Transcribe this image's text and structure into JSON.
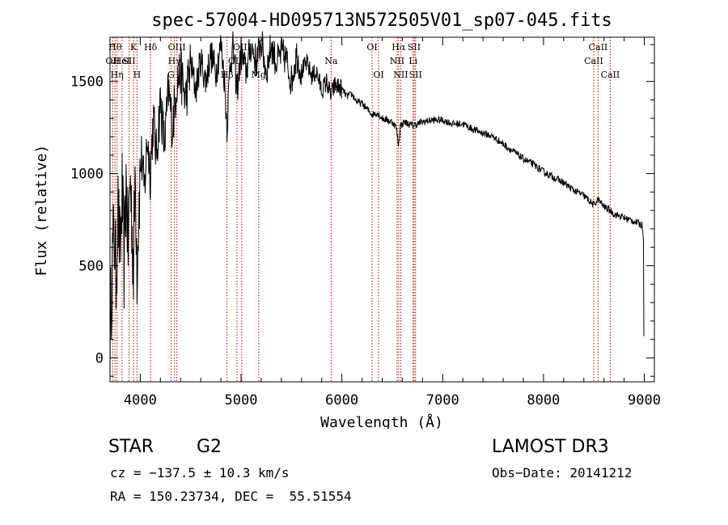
{
  "chart_data": {
    "type": "line",
    "title": "spec-57004-HD095713N572505V01_sp07-045.fits",
    "xlabel": "Wavelength (Å)",
    "ylabel": "Flux (relative)",
    "xlim": [
      3700,
      9100
    ],
    "ylim": [
      -130,
      1740
    ],
    "xticks": [
      4000,
      5000,
      6000,
      7000,
      8000,
      9000
    ],
    "yticks": [
      0,
      500,
      1000,
      1500
    ],
    "series": [
      {
        "name": "flux",
        "x": [
          3700,
          3720,
          3740,
          3760,
          3780,
          3800,
          3820,
          3840,
          3860,
          3880,
          3900,
          3920,
          3934,
          3950,
          3968,
          3990,
          4010,
          4040,
          4070,
          4100,
          4130,
          4160,
          4200,
          4240,
          4280,
          4320,
          4360,
          4400,
          4450,
          4500,
          4550,
          4600,
          4650,
          4700,
          4750,
          4800,
          4830,
          4861,
          4890,
          4920,
          4960,
          5000,
          5050,
          5100,
          5150,
          5200,
          5250,
          5300,
          5350,
          5400,
          5450,
          5500,
          5550,
          5600,
          5650,
          5700,
          5750,
          5800,
          5850,
          5890,
          5930,
          6000,
          6050,
          6100,
          6150,
          6200,
          6250,
          6300,
          6350,
          6400,
          6450,
          6500,
          6540,
          6563,
          6580,
          6620,
          6700,
          6800,
          6900,
          7000,
          7100,
          7200,
          7300,
          7400,
          7500,
          7600,
          7700,
          7800,
          7900,
          8000,
          8100,
          8200,
          8300,
          8400,
          8498,
          8542,
          8600,
          8662,
          8700,
          8800,
          8900,
          8980,
          9000
        ],
        "y": [
          100,
          500,
          700,
          450,
          800,
          550,
          900,
          500,
          950,
          600,
          1000,
          700,
          450,
          1050,
          500,
          900,
          1100,
          900,
          1200,
          1000,
          1300,
          1100,
          1400,
          1150,
          1450,
          1250,
          1500,
          1550,
          1400,
          1600,
          1450,
          1620,
          1500,
          1650,
          1550,
          1700,
          1550,
          1250,
          1600,
          1680,
          1450,
          1650,
          1550,
          1700,
          1600,
          1720,
          1550,
          1700,
          1600,
          1650,
          1620,
          1500,
          1650,
          1550,
          1600,
          1530,
          1550,
          1450,
          1500,
          1420,
          1480,
          1460,
          1420,
          1430,
          1390,
          1380,
          1350,
          1320,
          1330,
          1300,
          1290,
          1280,
          1250,
          1150,
          1260,
          1280,
          1260,
          1280,
          1290,
          1290,
          1270,
          1270,
          1240,
          1220,
          1200,
          1160,
          1120,
          1080,
          1050,
          1010,
          980,
          950,
          910,
          880,
          830,
          860,
          820,
          800,
          780,
          760,
          740,
          720,
          600
        ]
      }
    ],
    "lines": [
      {
        "wl": 3726,
        "label": "OII",
        "row": 1
      },
      {
        "wl": 3750,
        "label": "Hθ",
        "row": 0
      },
      {
        "wl": 3770,
        "label": "Hη",
        "row": 2
      },
      {
        "wl": 3820,
        "label": "HeI",
        "row": 1
      },
      {
        "wl": 3889,
        "label": "SII",
        "row": 1
      },
      {
        "wl": 3934,
        "label": "K",
        "row": 0
      },
      {
        "wl": 3968,
        "label": "H",
        "row": 2
      },
      {
        "wl": 4102,
        "label": "Hδ",
        "row": 0
      },
      {
        "wl": 4305,
        "label": "G",
        "row": 2
      },
      {
        "wl": 4340,
        "label": "Hγ",
        "row": 1
      },
      {
        "wl": 4363,
        "label": "OIII",
        "row": 0
      },
      {
        "wl": 4861,
        "label": "Hβ",
        "row": 2
      },
      {
        "wl": 4959,
        "label": "OIII",
        "row": 1
      },
      {
        "wl": 5007,
        "label": "OIII",
        "row": 0
      },
      {
        "wl": 5175,
        "label": "Mg",
        "row": 2
      },
      {
        "wl": 5893,
        "label": "Na",
        "row": 1
      },
      {
        "wl": 6300,
        "label": "OI",
        "row": 0
      },
      {
        "wl": 6364,
        "label": "OI",
        "row": 2
      },
      {
        "wl": 6548,
        "label": "NII",
        "row": 1
      },
      {
        "wl": 6563,
        "label": "Hα",
        "row": 0
      },
      {
        "wl": 6584,
        "label": "NII",
        "row": 2
      },
      {
        "wl": 6707,
        "label": "Li",
        "row": 1
      },
      {
        "wl": 6717,
        "label": "SII",
        "row": 0
      },
      {
        "wl": 6731,
        "label": "SII",
        "row": 2
      },
      {
        "wl": 8498,
        "label": "CaII",
        "row": 1
      },
      {
        "wl": 8542,
        "label": "CaII",
        "row": 0
      },
      {
        "wl": 8662,
        "label": "CaII",
        "row": 2
      }
    ]
  },
  "info": {
    "object_class": "STAR",
    "subclass": "G2",
    "survey": "LAMOST DR3",
    "redshift": "cz = −137.5 ± 10.3 km/s",
    "obs_date": "Obs−Date: 20141212",
    "coords": "RA = 150.23734, DEC =  55.51554"
  }
}
